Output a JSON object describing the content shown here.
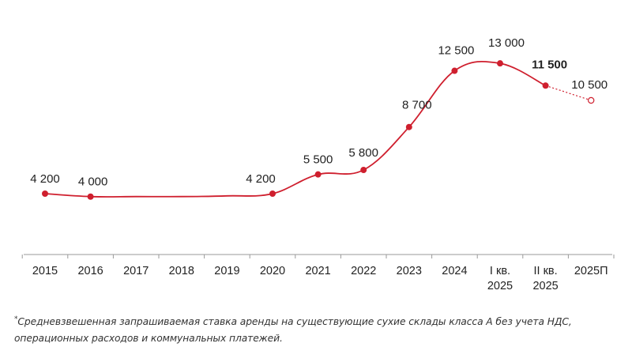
{
  "colors": {
    "line": "#cf1f2e",
    "axis": "#9a9a9a",
    "text": "#222222"
  },
  "chart_data": {
    "type": "line",
    "categories": [
      "2015",
      "2016",
      "2017",
      "2018",
      "2019",
      "2020",
      "2021",
      "2022",
      "2023",
      "2024",
      "I кв.\n2025",
      "II кв.\n2025",
      "2025П"
    ],
    "series": [
      {
        "values": [
          4200,
          4000,
          4000,
          4000,
          4050,
          4200,
          5500,
          5800,
          8700,
          12500,
          13000,
          11500,
          10500
        ],
        "labeled_points": [
          0,
          1,
          5,
          6,
          7,
          8,
          9,
          10,
          11,
          12
        ],
        "emphasized_point": 11,
        "forecast_from_index": 11
      }
    ],
    "data_labels": [
      "4 200",
      "4 000",
      "",
      "",
      "",
      "4 200",
      "5 500",
      "5 800",
      "8 700",
      "12 500",
      "13 000",
      "11 500",
      "10 500"
    ],
    "ylim": [
      0,
      14500
    ],
    "grid": false,
    "legend": "none"
  },
  "footnote": {
    "mark": "*",
    "line1": "Средневзвешенная запрашиваемая ставка аренды на существующие сухие склады класса А без учета НДС,",
    "line2": "операционных расходов и коммунальных платежей."
  }
}
